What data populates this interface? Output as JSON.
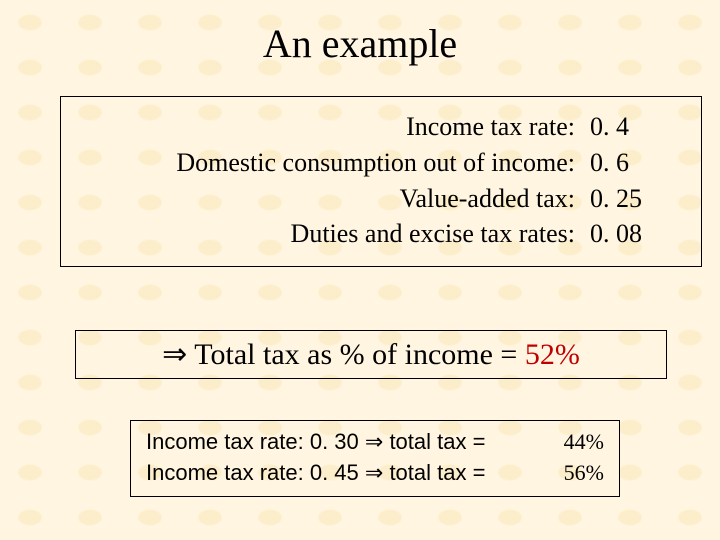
{
  "title": "An example",
  "colors": {
    "background": "#fff5e0",
    "pattern": "#fae6b4",
    "text": "#000000",
    "accent_red": "#c00000",
    "border": "#000000"
  },
  "typography": {
    "font_family": "Times New Roman",
    "title_fontsize_pt": 32,
    "box1_fontsize_pt": 20,
    "box2_fontsize_pt": 24,
    "box3_fontsize_pt": 17
  },
  "box1": {
    "rows": [
      {
        "label": "Income tax rate:",
        "value": "0. 4"
      },
      {
        "label": "Domestic consumption out of income:",
        "value": "0. 6"
      },
      {
        "label": "Value-added tax:",
        "value": "0. 25"
      },
      {
        "label": "Duties and excise tax rates:",
        "value": "0. 08"
      }
    ]
  },
  "box2": {
    "arrow": "⇒",
    "text_before": " Total tax as % of income = ",
    "percent": "52%"
  },
  "box3": {
    "rows": [
      {
        "left": "Income tax rate: 0. 30 ⇒ total tax =",
        "right": "44%"
      },
      {
        "left": "Income tax rate: 0. 45 ⇒ total tax =",
        "right": "56%"
      }
    ]
  }
}
